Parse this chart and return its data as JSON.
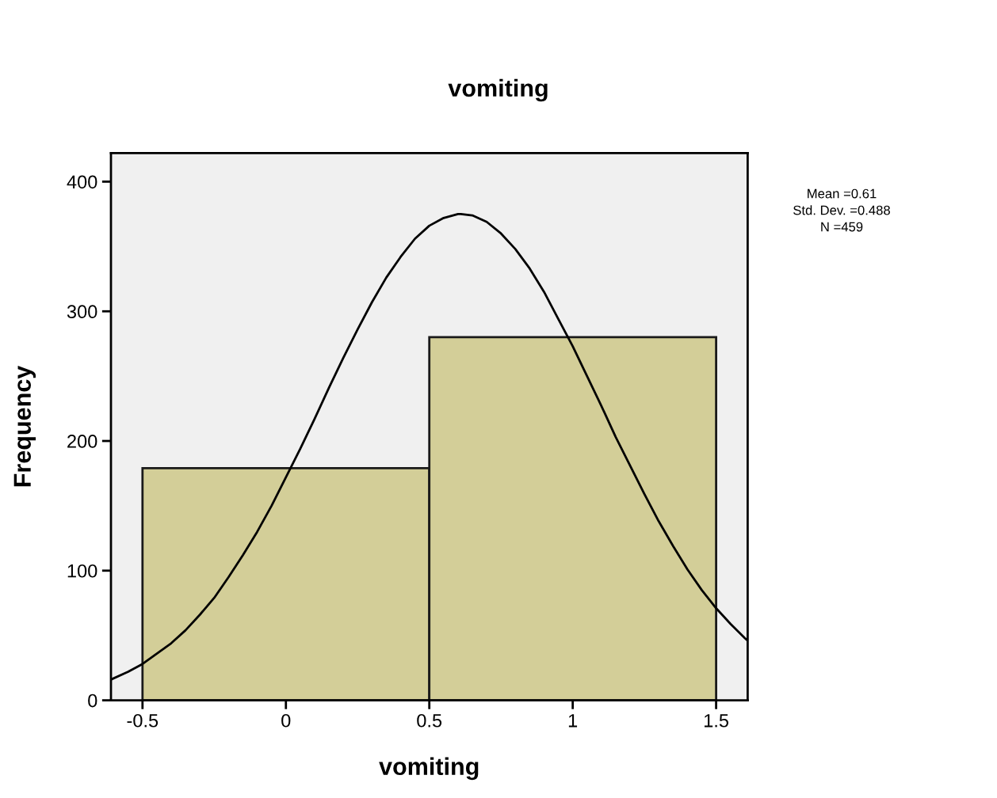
{
  "chart_data": {
    "type": "histogram",
    "title": "vomiting",
    "xlabel": "vomiting",
    "ylabel": "Frequency",
    "bins": [
      -0.5,
      0.5,
      1.5
    ],
    "values": [
      179,
      280
    ],
    "color": "#d3ce98",
    "series": [
      {
        "type": "line",
        "color": "#000000",
        "x": [
          -0.61,
          -0.55,
          -0.5,
          -0.45,
          -0.4,
          -0.35,
          -0.3,
          -0.25,
          -0.2,
          -0.15,
          -0.1,
          -0.05,
          0,
          0.05,
          0.1,
          0.15,
          0.2,
          0.25,
          0.3,
          0.35,
          0.4,
          0.45,
          0.5,
          0.55,
          0.6,
          0.61,
          0.65,
          0.7,
          0.75,
          0.8,
          0.85,
          0.9,
          0.95,
          1.0,
          1.05,
          1.1,
          1.15,
          1.2,
          1.25,
          1.3,
          1.35,
          1.4,
          1.45,
          1.5,
          1.55,
          1.6,
          1.61
        ],
        "values": [
          16,
          22,
          28,
          36,
          44,
          54,
          66,
          79,
          95,
          112,
          130,
          150,
          172,
          194,
          217,
          241,
          264,
          286,
          307,
          326,
          342,
          356,
          366,
          372,
          375,
          375,
          374,
          369,
          360,
          348,
          333,
          315,
          294,
          273,
          250,
          227,
          203,
          181,
          159,
          138,
          119,
          101,
          85,
          71,
          59,
          48,
          46
        ]
      }
    ],
    "xlim": [
      -0.61,
      1.61
    ],
    "xticks": [
      -0.5,
      0,
      0.5,
      1,
      1.5
    ],
    "ylim": [
      0,
      422
    ],
    "yticks": [
      0,
      100,
      200,
      300,
      400
    ],
    "annotations": [
      "Mean =0.61",
      "Std. Dev. =0.488",
      "N =459"
    ]
  }
}
